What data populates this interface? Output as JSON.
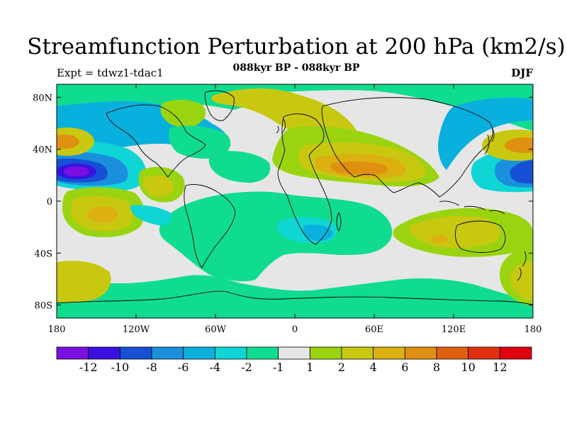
{
  "title": "Streamfunction Perturbation at 200 hPa (km2/s)",
  "subtitle": "088kyr BP - 088kyr BP",
  "left_label": "Expt = tdwz1-tdac1",
  "right_label": "DJF",
  "map": {
    "projection": "cylindrical equidistant",
    "lon_range": [
      -180,
      180
    ],
    "lat_range": [
      -90,
      90
    ],
    "lat_ticks": [
      {
        "v": 80,
        "label": "80N"
      },
      {
        "v": 40,
        "label": "40N"
      },
      {
        "v": 0,
        "label": "0"
      },
      {
        "v": -40,
        "label": "40S"
      },
      {
        "v": -80,
        "label": "80S"
      }
    ],
    "lon_ticks": [
      {
        "v": -180,
        "label": "180"
      },
      {
        "v": -120,
        "label": "120W"
      },
      {
        "v": -60,
        "label": "60W"
      },
      {
        "v": 0,
        "label": "0"
      },
      {
        "v": 60,
        "label": "60E"
      },
      {
        "v": 120,
        "label": "120E"
      },
      {
        "v": 180,
        "label": "180"
      }
    ]
  },
  "colorbar": {
    "colors": [
      "#7a10e0",
      "#3a10e0",
      "#1550d5",
      "#1a90dd",
      "#0ab0dd",
      "#10d5d5",
      "#10dc90",
      "#e6e6e6",
      "#9ad410",
      "#c8c810",
      "#dcb010",
      "#e09010",
      "#e06010",
      "#e03010",
      "#e00010"
    ],
    "labels": [
      "-12",
      "-10",
      "-8",
      "-6",
      "-4",
      "-2",
      "-1",
      "1",
      "2",
      "4",
      "6",
      "8",
      "10",
      "12"
    ]
  }
}
